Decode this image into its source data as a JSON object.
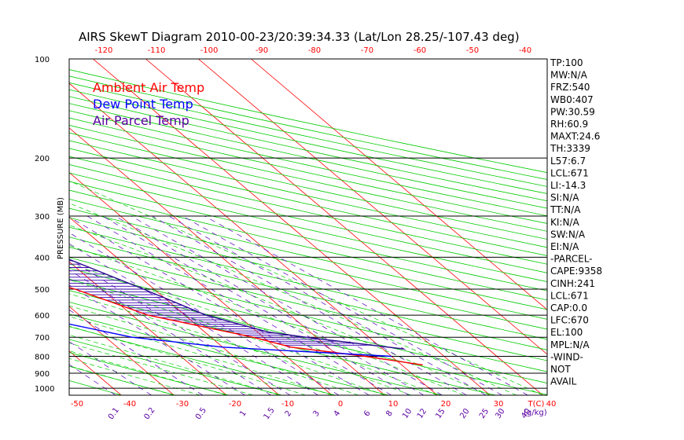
{
  "chart_data": {
    "type": "skewt",
    "title": "AIRS SkewT Diagram 2010-00-23/20:39:34.33 (Lat/Lon 28.25/-107.43 deg)",
    "ylabel": "PRESSURE (MB)",
    "xlabel_bottom": "T(C)",
    "mixing_ratio_unit": "(g/kg)",
    "pressure_ticks": [
      100,
      200,
      300,
      400,
      500,
      600,
      700,
      800,
      900,
      1000
    ],
    "bottom_temp_ticks": [
      -50,
      -40,
      -30,
      -20,
      -10,
      0,
      10,
      20,
      30,
      40
    ],
    "top_temp_ticks": [
      -120,
      -110,
      -100,
      -90,
      -80,
      -70,
      -60,
      -50,
      -40
    ],
    "mixing_ratio_labels": [
      "0.1",
      "0.2",
      "0.5",
      "1",
      "1.5",
      "2",
      "3",
      "4",
      "6",
      "8",
      "10",
      "12",
      "15",
      "20",
      "25",
      "30",
      "40"
    ],
    "legend": [
      {
        "label": "Ambient Air Temp",
        "color": "#ff0000"
      },
      {
        "label": "Dew Point Temp",
        "color": "#0000ff"
      },
      {
        "label": "Air Parcel Temp",
        "color": "#5a00a0"
      }
    ],
    "series": {
      "ambient_temp": [
        [
          100,
          -83
        ],
        [
          150,
          -82
        ],
        [
          200,
          -69
        ],
        [
          300,
          -56
        ],
        [
          400,
          -39
        ],
        [
          500,
          -25
        ],
        [
          600,
          -17
        ],
        [
          700,
          -2
        ],
        [
          750,
          3
        ],
        [
          800,
          15
        ],
        [
          850,
          24
        ]
      ],
      "dew_point": [
        [
          100,
          -84
        ],
        [
          150,
          -87
        ],
        [
          200,
          -85
        ],
        [
          300,
          -78
        ],
        [
          400,
          -65
        ],
        [
          500,
          -53
        ],
        [
          600,
          -40
        ],
        [
          700,
          -25
        ],
        [
          750,
          -10
        ],
        [
          800,
          20
        ]
      ],
      "parcel_temp": [
        [
          100,
          -70
        ],
        [
          150,
          -55
        ],
        [
          200,
          -42
        ],
        [
          300,
          -30
        ],
        [
          400,
          -20
        ],
        [
          500,
          -12
        ],
        [
          600,
          -6
        ],
        [
          675,
          2
        ],
        [
          700,
          8
        ],
        [
          760,
          24
        ]
      ]
    },
    "indices": [
      "TP:100",
      "MW:N/A",
      "FRZ:540",
      "WB0:407",
      "PW:30.59",
      "RH:60.9",
      "MAXT:24.6",
      "TH:3339",
      "L57:6.7",
      "LCL:671",
      "LI:-14.3",
      "SI:N/A",
      "TT:N/A",
      "KI:N/A",
      "SW:N/A",
      "EI:N/A",
      "-PARCEL-",
      "CAPE:9358",
      "CINH:241",
      "LCL:671",
      "CAP:0.0",
      "LFC:670",
      "EL:100",
      "MPL:N/A",
      "-WIND-",
      "NOT",
      "AVAIL"
    ],
    "colors": {
      "isotherm": "#ff0000",
      "dry_adiabat": "#00cc00",
      "moist_adiabat": "#00cc00",
      "mixing_ratio": "#6a1cc0",
      "isobar": "#000000",
      "cape_hatch": "#3a00b0"
    }
  }
}
